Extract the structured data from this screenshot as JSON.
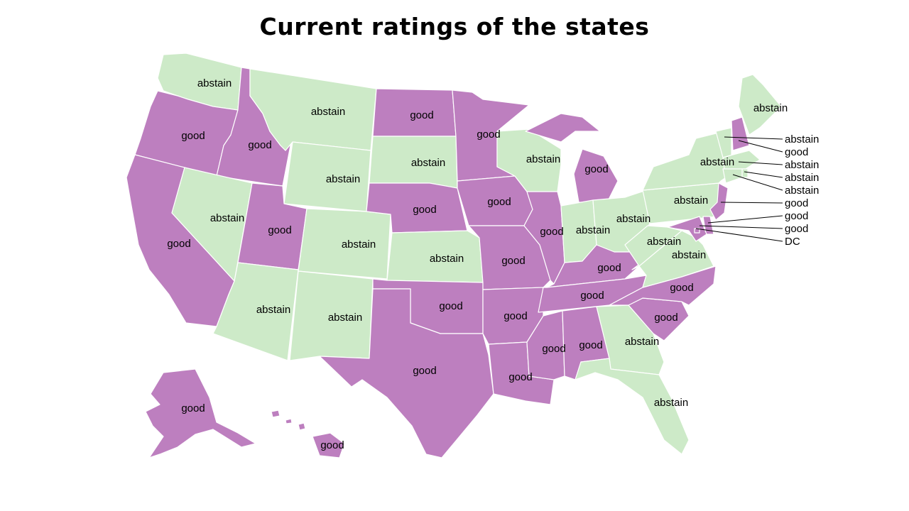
{
  "title": "Current ratings of the states",
  "colors": {
    "good": "#bd7fbf",
    "abstain": "#cdeac8"
  },
  "states": [
    {
      "id": "WA",
      "rating": "abstain",
      "label": "abstain"
    },
    {
      "id": "OR",
      "rating": "good",
      "label": "good"
    },
    {
      "id": "CA",
      "rating": "good",
      "label": "good"
    },
    {
      "id": "ID",
      "rating": "good",
      "label": "good"
    },
    {
      "id": "NV",
      "rating": "abstain",
      "label": "abstain"
    },
    {
      "id": "MT",
      "rating": "abstain",
      "label": "abstain"
    },
    {
      "id": "WY",
      "rating": "abstain",
      "label": "abstain"
    },
    {
      "id": "UT",
      "rating": "good",
      "label": "good"
    },
    {
      "id": "AZ",
      "rating": "abstain",
      "label": "abstain"
    },
    {
      "id": "CO",
      "rating": "abstain",
      "label": "abstain"
    },
    {
      "id": "NM",
      "rating": "abstain",
      "label": "abstain"
    },
    {
      "id": "ND",
      "rating": "good",
      "label": "good"
    },
    {
      "id": "SD",
      "rating": "abstain",
      "label": "abstain"
    },
    {
      "id": "NE",
      "rating": "good",
      "label": "good"
    },
    {
      "id": "KS",
      "rating": "abstain",
      "label": "abstain"
    },
    {
      "id": "OK",
      "rating": "good",
      "label": "good"
    },
    {
      "id": "TX",
      "rating": "good",
      "label": "good"
    },
    {
      "id": "MN",
      "rating": "good",
      "label": "good"
    },
    {
      "id": "IA",
      "rating": "good",
      "label": "good"
    },
    {
      "id": "MO",
      "rating": "good",
      "label": "good"
    },
    {
      "id": "AR",
      "rating": "good",
      "label": "good"
    },
    {
      "id": "LA",
      "rating": "good",
      "label": "good"
    },
    {
      "id": "WI",
      "rating": "abstain",
      "label": "abstain"
    },
    {
      "id": "IL",
      "rating": "good",
      "label": "good"
    },
    {
      "id": "MI",
      "rating": "good",
      "label": "good"
    },
    {
      "id": "IN",
      "rating": "abstain",
      "label": "abstain"
    },
    {
      "id": "OH",
      "rating": "abstain",
      "label": "abstain"
    },
    {
      "id": "KY",
      "rating": "good",
      "label": "good"
    },
    {
      "id": "TN",
      "rating": "good",
      "label": "good"
    },
    {
      "id": "MS",
      "rating": "good",
      "label": "good"
    },
    {
      "id": "AL",
      "rating": "good",
      "label": "good"
    },
    {
      "id": "GA",
      "rating": "abstain",
      "label": "abstain"
    },
    {
      "id": "FL",
      "rating": "abstain",
      "label": "abstain"
    },
    {
      "id": "SC",
      "rating": "good",
      "label": "good"
    },
    {
      "id": "NC",
      "rating": "good",
      "label": "good"
    },
    {
      "id": "VA",
      "rating": "abstain",
      "label": "abstain"
    },
    {
      "id": "WV",
      "rating": "abstain",
      "label": "abstain"
    },
    {
      "id": "PA",
      "rating": "abstain",
      "label": "abstain"
    },
    {
      "id": "NY",
      "rating": "abstain",
      "label": "abstain"
    },
    {
      "id": "ME",
      "rating": "abstain",
      "label": "abstain"
    },
    {
      "id": "NJ",
      "rating": "good",
      "label": "good"
    },
    {
      "id": "VT",
      "rating": "abstain",
      "label": "abstain"
    },
    {
      "id": "NH",
      "rating": "good",
      "label": "good"
    },
    {
      "id": "MA",
      "rating": "abstain",
      "label": "abstain"
    },
    {
      "id": "RI",
      "rating": "abstain",
      "label": "abstain"
    },
    {
      "id": "CT",
      "rating": "abstain",
      "label": "abstain"
    },
    {
      "id": "DE",
      "rating": "good",
      "label": "good"
    },
    {
      "id": "MD",
      "rating": "good",
      "label": "good"
    },
    {
      "id": "DC",
      "rating": "good",
      "label": "good"
    },
    {
      "id": "AK",
      "rating": "good",
      "label": "good"
    },
    {
      "id": "HI",
      "rating": "good",
      "label": "good"
    }
  ],
  "callouts": [
    {
      "state": "VT",
      "text": "abstain"
    },
    {
      "state": "NH",
      "text": "good"
    },
    {
      "state": "MA",
      "text": "abstain"
    },
    {
      "state": "RI",
      "text": "abstain"
    },
    {
      "state": "CT",
      "text": "abstain"
    },
    {
      "state": "NJ",
      "text": "good"
    },
    {
      "state": "DE",
      "text": "good"
    },
    {
      "state": "MD",
      "text": "good"
    },
    {
      "state": "DC",
      "text": "DC"
    }
  ]
}
